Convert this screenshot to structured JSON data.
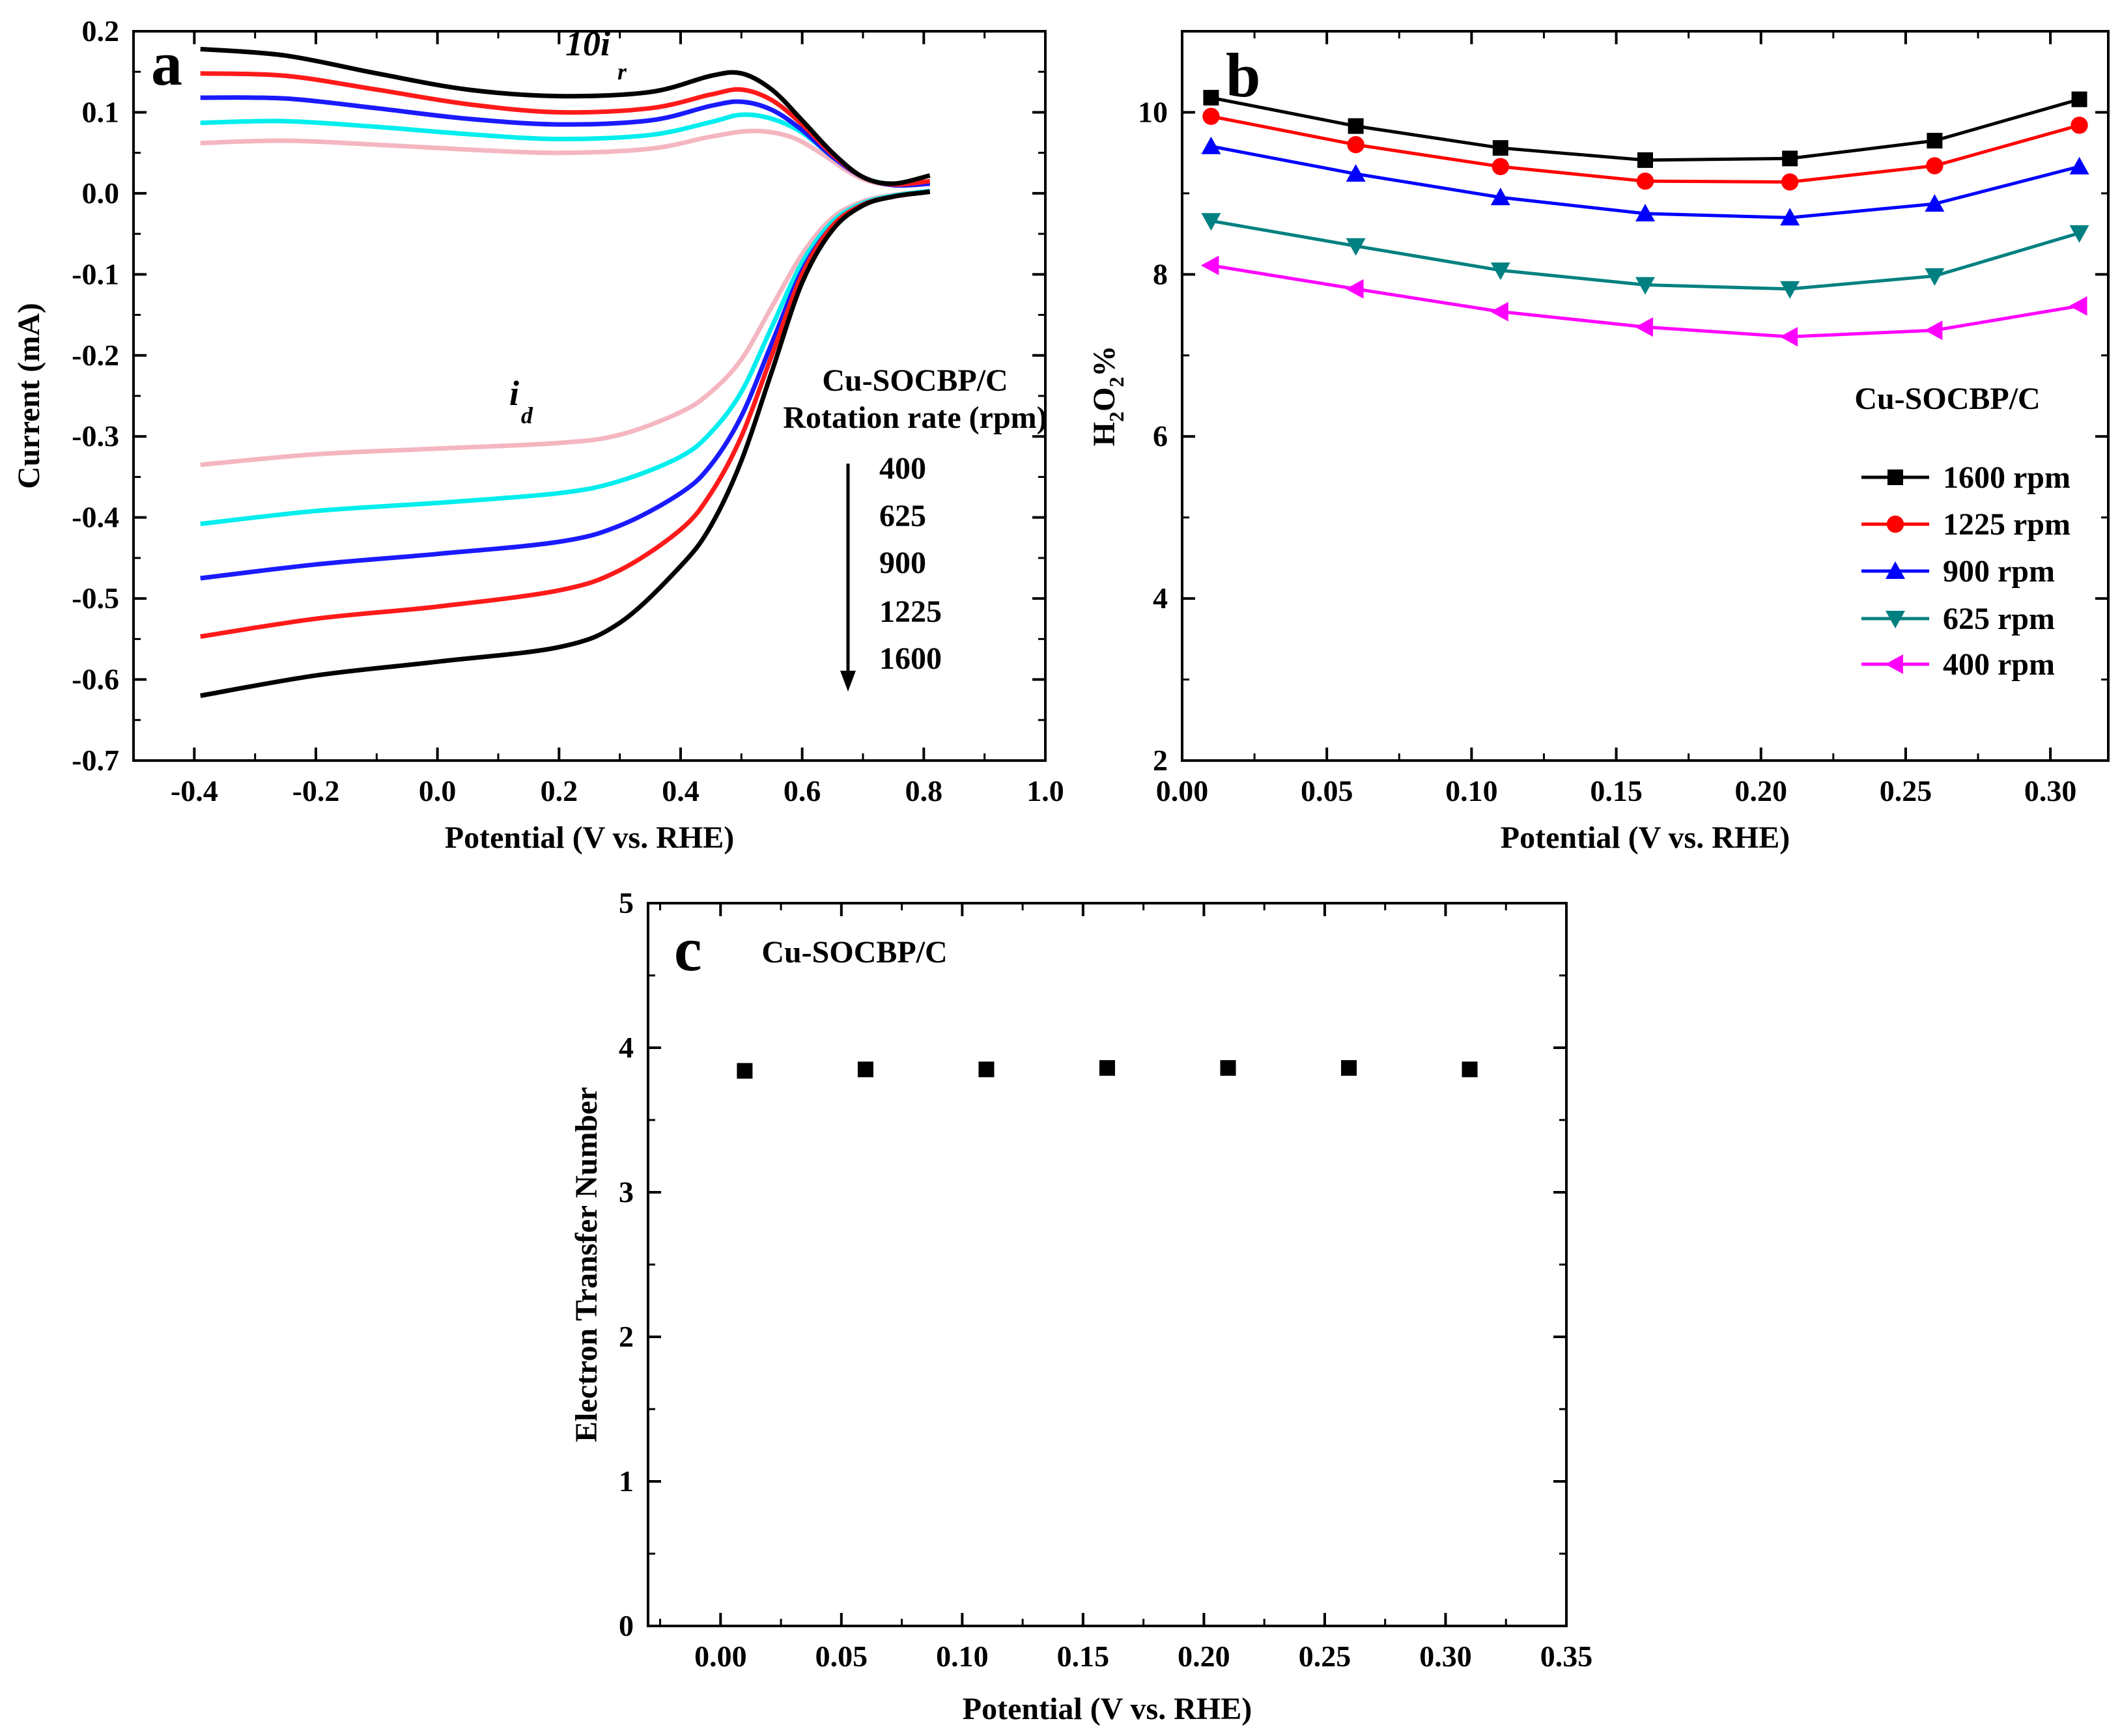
{
  "chart_data": [
    {
      "panel": "a",
      "type": "line",
      "xlabel": "Potential (V vs. RHE)",
      "ylabel": "Current (mA)",
      "xlim": [
        -0.5,
        1.0
      ],
      "ylim": [
        -0.7,
        0.2
      ],
      "xticks": [
        "-0.4",
        "-0.2",
        "0.0",
        "0.2",
        "0.4",
        "0.6",
        "0.8",
        "1.0"
      ],
      "yticks": [
        "0.2",
        "0.1",
        "0.0",
        "-0.1",
        "-0.2",
        "-0.3",
        "-0.4",
        "-0.5",
        "-0.6",
        "-0.7"
      ],
      "annotations": {
        "ring_label_main": "10i",
        "ring_label_sub": "r",
        "disk_label_main": "i",
        "disk_label_sub": "d",
        "sample": "Cu-SOCBP/C",
        "legend_title": "Rotation rate (rpm)",
        "rates": [
          "400",
          "625",
          "900",
          "1225",
          "1600"
        ]
      },
      "series": [
        {
          "name": "400",
          "color": "#f4b6c0",
          "disk": [
            [
              -0.39,
              -0.335
            ],
            [
              -0.2,
              -0.322
            ],
            [
              0.0,
              -0.315
            ],
            [
              0.2,
              -0.308
            ],
            [
              0.3,
              -0.298
            ],
            [
              0.4,
              -0.27
            ],
            [
              0.45,
              -0.245
            ],
            [
              0.5,
              -0.205
            ],
            [
              0.55,
              -0.14
            ],
            [
              0.6,
              -0.075
            ],
            [
              0.65,
              -0.03
            ],
            [
              0.7,
              -0.01
            ],
            [
              0.75,
              -0.002
            ],
            [
              0.8,
              0.002
            ],
            [
              0.81,
              0.003
            ]
          ],
          "ring": [
            [
              -0.39,
              0.062
            ],
            [
              -0.25,
              0.065
            ],
            [
              -0.1,
              0.06
            ],
            [
              0.05,
              0.054
            ],
            [
              0.2,
              0.05
            ],
            [
              0.35,
              0.055
            ],
            [
              0.45,
              0.07
            ],
            [
              0.52,
              0.077
            ],
            [
              0.58,
              0.07
            ],
            [
              0.63,
              0.05
            ],
            [
              0.68,
              0.025
            ],
            [
              0.72,
              0.013
            ],
            [
              0.77,
              0.01
            ],
            [
              0.81,
              0.012
            ]
          ]
        },
        {
          "name": "625",
          "color": "#00eeee",
          "disk": [
            [
              -0.39,
              -0.408
            ],
            [
              -0.2,
              -0.392
            ],
            [
              0.0,
              -0.382
            ],
            [
              0.2,
              -0.37
            ],
            [
              0.3,
              -0.355
            ],
            [
              0.4,
              -0.325
            ],
            [
              0.45,
              -0.295
            ],
            [
              0.5,
              -0.245
            ],
            [
              0.55,
              -0.165
            ],
            [
              0.6,
              -0.085
            ],
            [
              0.65,
              -0.035
            ],
            [
              0.7,
              -0.012
            ],
            [
              0.75,
              -0.003
            ],
            [
              0.8,
              0.002
            ],
            [
              0.81,
              0.003
            ]
          ],
          "ring": [
            [
              -0.39,
              0.087
            ],
            [
              -0.25,
              0.089
            ],
            [
              -0.1,
              0.082
            ],
            [
              0.05,
              0.073
            ],
            [
              0.2,
              0.067
            ],
            [
              0.35,
              0.072
            ],
            [
              0.45,
              0.088
            ],
            [
              0.5,
              0.097
            ],
            [
              0.55,
              0.092
            ],
            [
              0.6,
              0.075
            ],
            [
              0.65,
              0.045
            ],
            [
              0.7,
              0.02
            ],
            [
              0.75,
              0.011
            ],
            [
              0.81,
              0.012
            ]
          ]
        },
        {
          "name": "900",
          "color": "#1a1aff",
          "disk": [
            [
              -0.39,
              -0.475
            ],
            [
              -0.2,
              -0.458
            ],
            [
              0.0,
              -0.445
            ],
            [
              0.2,
              -0.43
            ],
            [
              0.3,
              -0.41
            ],
            [
              0.4,
              -0.37
            ],
            [
              0.45,
              -0.335
            ],
            [
              0.5,
              -0.275
            ],
            [
              0.55,
              -0.185
            ],
            [
              0.6,
              -0.095
            ],
            [
              0.65,
              -0.04
            ],
            [
              0.7,
              -0.014
            ],
            [
              0.75,
              -0.004
            ],
            [
              0.8,
              0.001
            ],
            [
              0.81,
              0.002
            ]
          ],
          "ring": [
            [
              -0.39,
              0.118
            ],
            [
              -0.25,
              0.117
            ],
            [
              -0.1,
              0.105
            ],
            [
              0.05,
              0.092
            ],
            [
              0.2,
              0.085
            ],
            [
              0.35,
              0.09
            ],
            [
              0.45,
              0.108
            ],
            [
              0.5,
              0.113
            ],
            [
              0.55,
              0.103
            ],
            [
              0.6,
              0.078
            ],
            [
              0.65,
              0.045
            ],
            [
              0.7,
              0.02
            ],
            [
              0.75,
              0.01
            ],
            [
              0.81,
              0.012
            ]
          ]
        },
        {
          "name": "1225",
          "color": "#ff1a1a",
          "disk": [
            [
              -0.39,
              -0.547
            ],
            [
              -0.2,
              -0.525
            ],
            [
              0.0,
              -0.51
            ],
            [
              0.2,
              -0.49
            ],
            [
              0.3,
              -0.465
            ],
            [
              0.4,
              -0.415
            ],
            [
              0.45,
              -0.37
            ],
            [
              0.5,
              -0.3
            ],
            [
              0.55,
              -0.2
            ],
            [
              0.6,
              -0.1
            ],
            [
              0.65,
              -0.04
            ],
            [
              0.7,
              -0.014
            ],
            [
              0.75,
              -0.004
            ],
            [
              0.8,
              0.001
            ],
            [
              0.81,
              0.002
            ]
          ],
          "ring": [
            [
              -0.39,
              0.148
            ],
            [
              -0.25,
              0.145
            ],
            [
              -0.1,
              0.128
            ],
            [
              0.05,
              0.11
            ],
            [
              0.2,
              0.1
            ],
            [
              0.35,
              0.105
            ],
            [
              0.45,
              0.122
            ],
            [
              0.5,
              0.128
            ],
            [
              0.55,
              0.115
            ],
            [
              0.6,
              0.085
            ],
            [
              0.65,
              0.048
            ],
            [
              0.7,
              0.02
            ],
            [
              0.75,
              0.011
            ],
            [
              0.81,
              0.015
            ]
          ]
        },
        {
          "name": "1600",
          "color": "#000000",
          "disk": [
            [
              -0.39,
              -0.62
            ],
            [
              -0.2,
              -0.595
            ],
            [
              0.0,
              -0.578
            ],
            [
              0.2,
              -0.56
            ],
            [
              0.3,
              -0.53
            ],
            [
              0.4,
              -0.46
            ],
            [
              0.45,
              -0.41
            ],
            [
              0.5,
              -0.33
            ],
            [
              0.55,
              -0.22
            ],
            [
              0.6,
              -0.11
            ],
            [
              0.65,
              -0.045
            ],
            [
              0.7,
              -0.015
            ],
            [
              0.75,
              -0.004
            ],
            [
              0.8,
              0.001
            ],
            [
              0.81,
              0.002
            ]
          ],
          "ring": [
            [
              -0.39,
              0.178
            ],
            [
              -0.25,
              0.17
            ],
            [
              -0.1,
              0.148
            ],
            [
              0.05,
              0.128
            ],
            [
              0.2,
              0.12
            ],
            [
              0.35,
              0.125
            ],
            [
              0.45,
              0.145
            ],
            [
              0.5,
              0.148
            ],
            [
              0.55,
              0.128
            ],
            [
              0.6,
              0.09
            ],
            [
              0.65,
              0.05
            ],
            [
              0.7,
              0.02
            ],
            [
              0.75,
              0.012
            ],
            [
              0.81,
              0.022
            ]
          ]
        }
      ]
    },
    {
      "panel": "b",
      "type": "line",
      "xlabel": "Potential (V vs. RHE)",
      "ylabel_main": "H",
      "ylabel_sub1": "2",
      "ylabel_mid": "O",
      "ylabel_sub2": "2",
      "ylabel_end": "%",
      "xlim": [
        0.0,
        0.32
      ],
      "ylim": [
        2,
        11
      ],
      "xticks": [
        "0.00",
        "0.05",
        "0.10",
        "0.15",
        "0.20",
        "0.25",
        "0.30"
      ],
      "yticks": [
        "2",
        "4",
        "6",
        "8",
        "10"
      ],
      "sample": "Cu-SOCBP/C",
      "x": [
        0.01,
        0.06,
        0.11,
        0.16,
        0.21,
        0.26,
        0.31
      ],
      "series": [
        {
          "name": "1600 rpm",
          "color": "#000000",
          "marker": "square",
          "values": [
            10.18,
            9.83,
            9.56,
            9.41,
            9.43,
            9.65,
            10.16
          ]
        },
        {
          "name": "1225 rpm",
          "color": "#ff0000",
          "marker": "circle",
          "values": [
            9.95,
            9.6,
            9.33,
            9.15,
            9.14,
            9.34,
            9.84
          ]
        },
        {
          "name": "900 rpm",
          "color": "#0000ff",
          "marker": "triangle-up",
          "values": [
            9.58,
            9.24,
            8.95,
            8.75,
            8.7,
            8.87,
            9.33
          ]
        },
        {
          "name": "625 rpm",
          "color": "#008080",
          "marker": "triangle-down",
          "values": [
            8.66,
            8.35,
            8.05,
            7.87,
            7.82,
            7.98,
            8.51
          ]
        },
        {
          "name": "400 rpm",
          "color": "#ff00ff",
          "marker": "triangle-left",
          "values": [
            8.11,
            7.82,
            7.54,
            7.35,
            7.23,
            7.31,
            7.61
          ]
        }
      ]
    },
    {
      "panel": "c",
      "type": "scatter",
      "xlabel": "Potential (V vs. RHE)",
      "ylabel": "Electron Transfer Number",
      "xlim": [
        -0.03,
        0.35
      ],
      "ylim": [
        0,
        5
      ],
      "xticks": [
        "0.00",
        "0.05",
        "0.10",
        "0.15",
        "0.20",
        "0.25",
        "0.30",
        "0.35"
      ],
      "yticks": [
        "0",
        "1",
        "2",
        "3",
        "4",
        "5"
      ],
      "sample": "Cu-SOCBP/C",
      "x": [
        0.01,
        0.06,
        0.11,
        0.16,
        0.21,
        0.26,
        0.31
      ],
      "values": [
        3.84,
        3.85,
        3.85,
        3.86,
        3.86,
        3.86,
        3.85
      ],
      "color": "#000000"
    }
  ],
  "panel_labels": {
    "a": "a",
    "b": "b",
    "c": "c"
  }
}
